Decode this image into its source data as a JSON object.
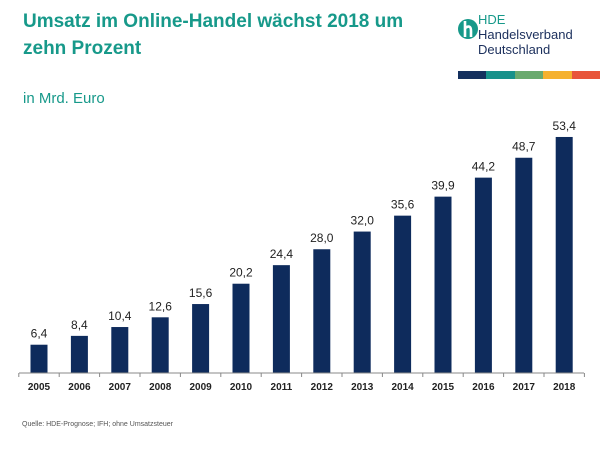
{
  "title": "Umsatz im Online-Handel wächst 2018 um zehn Prozent",
  "subtitle": "in Mrd. Euro",
  "logo": {
    "line1": "HDE",
    "line2": "Handelsverband",
    "line3": "Deutschland",
    "stripe_colors": [
      "#14305e",
      "#17918a",
      "#6aaa6e",
      "#f5b12f",
      "#e8553a"
    ]
  },
  "source": "Quelle: HDE-Prognose; IFH; ohne Umsatzsteuer",
  "colors": {
    "bar": "#0e2b5c",
    "title": "#17998a"
  },
  "chart_data": {
    "type": "bar",
    "categories": [
      "2005",
      "2006",
      "2007",
      "2008",
      "2009",
      "2010",
      "2011",
      "2012",
      "2013",
      "2014",
      "2015",
      "2016",
      "2017",
      "2018"
    ],
    "values": [
      6.4,
      8.4,
      10.4,
      12.6,
      15.6,
      20.2,
      24.4,
      28.0,
      32.0,
      35.6,
      39.9,
      44.2,
      48.7,
      53.4
    ],
    "labels": [
      "6,4",
      "8,4",
      "10,4",
      "12,6",
      "15,6",
      "20,2",
      "24,4",
      "28,0",
      "32,0",
      "35,6",
      "39,9",
      "44,2",
      "48,7",
      "53,4"
    ],
    "title": "",
    "xlabel": "",
    "ylabel": "in Mrd. Euro",
    "grid": false
  }
}
